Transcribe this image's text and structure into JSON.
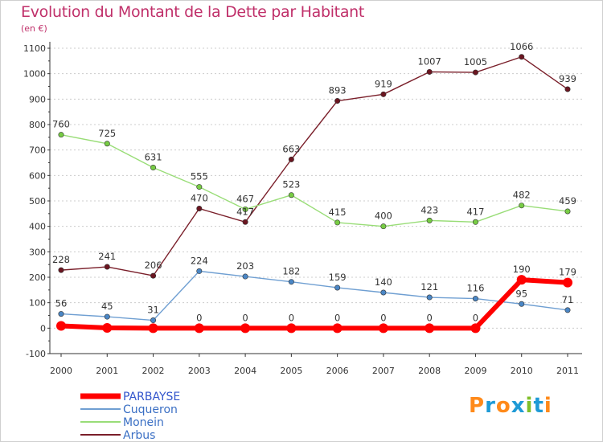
{
  "title": "Evolution du Montant de la Dette par Habitant",
  "subtitle": "(en €)",
  "logo_text": "Proxiti",
  "colors": {
    "title": "#c0306a",
    "grid": "#cccccc",
    "axis": "#333333"
  },
  "chart_data": {
    "type": "line",
    "title": "Evolution du Montant de la Dette par Habitant",
    "ylabel": "(en €)",
    "xlabel": "",
    "ylim": [
      -100,
      1100
    ],
    "yticks": [
      -100,
      0,
      100,
      200,
      300,
      400,
      500,
      600,
      700,
      800,
      900,
      1000,
      1100
    ],
    "grid": "horizontal-dashed",
    "legend_position": "bottom-left",
    "x": [
      "2000",
      "2001",
      "2002",
      "2003",
      "2004",
      "2005",
      "2006",
      "2007",
      "2008",
      "2009",
      "2010",
      "2011"
    ],
    "series": [
      {
        "name": "PARBAYSE",
        "color": "#ff0000",
        "marker": "#ff0000",
        "values": [
          9,
          1,
          0,
          0,
          0,
          0,
          0,
          0,
          0,
          0,
          190,
          179
        ],
        "labels": [
          "",
          "",
          "",
          "0",
          "0",
          "0",
          "0",
          "0",
          "0",
          "0",
          "190",
          "179"
        ]
      },
      {
        "name": "Cuqueron",
        "color": "#6f9fd2",
        "marker": "#4a86c5",
        "values": [
          56,
          45,
          31,
          224,
          203,
          182,
          159,
          140,
          121,
          116,
          95,
          71
        ],
        "labels": [
          "56",
          "45",
          "31",
          "224",
          "203",
          "182",
          "159",
          "140",
          "121",
          "116",
          "95",
          "71"
        ]
      },
      {
        "name": "Monein",
        "color": "#99dd77",
        "marker": "#77cc44",
        "values": [
          760,
          725,
          631,
          555,
          467,
          523,
          415,
          400,
          423,
          417,
          482,
          459
        ],
        "labels": [
          "760",
          "725",
          "631",
          "555",
          "467",
          "523",
          "415",
          "400",
          "423",
          "417",
          "482",
          "459"
        ]
      },
      {
        "name": "Arbus",
        "color": "#7a1f2a",
        "marker": "#6b1520",
        "values": [
          228,
          241,
          206,
          470,
          417,
          663,
          893,
          919,
          1007,
          1005,
          1066,
          939
        ],
        "labels": [
          "228",
          "241",
          "206",
          "470",
          "417",
          "663",
          "893",
          "919",
          "1007",
          "1005",
          "1066",
          "939"
        ]
      }
    ]
  }
}
